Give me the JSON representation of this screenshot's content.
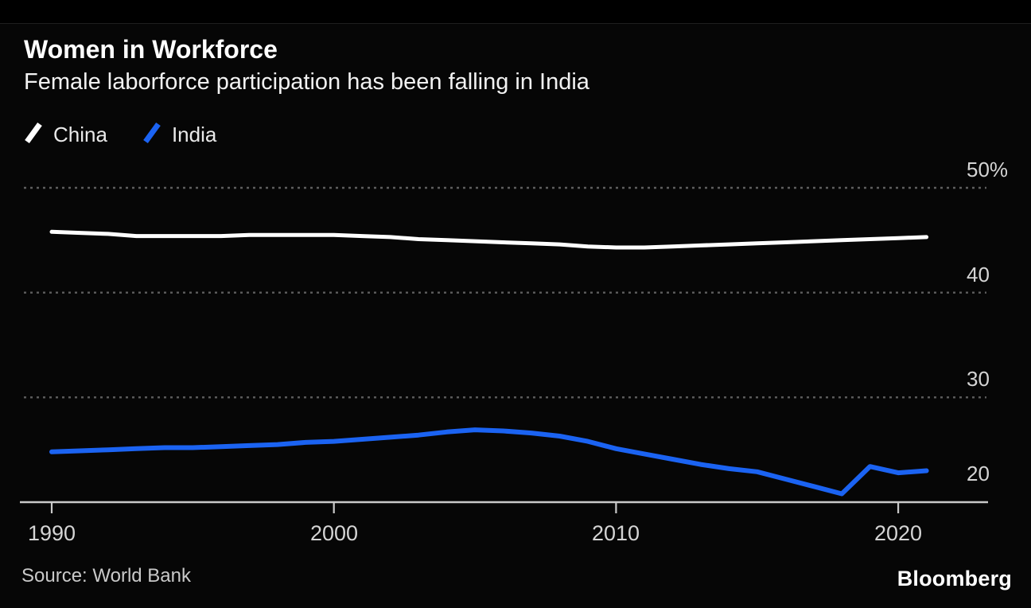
{
  "header": {
    "title": "Women in Workforce",
    "subtitle": "Female laborforce participation has been falling in India"
  },
  "legend": {
    "items": [
      {
        "label": "China",
        "color": "#ffffff"
      },
      {
        "label": "India",
        "color": "#1b63f2"
      }
    ]
  },
  "chart_data": {
    "type": "line",
    "title": "Women in Workforce",
    "subtitle": "Female laborforce participation has been falling in India",
    "xlabel": "",
    "ylabel": "",
    "grid": "horizontal-dashed",
    "legend_position": "top-left",
    "x_range": [
      1990,
      2021
    ],
    "ylim": [
      19.8,
      51
    ],
    "x_ticks": [
      {
        "value": 1990,
        "label": "1990"
      },
      {
        "value": 2000,
        "label": "2000"
      },
      {
        "value": 2010,
        "label": "2010"
      },
      {
        "value": 2020,
        "label": "2020"
      }
    ],
    "y_ticks": [
      {
        "value": 50,
        "label": "50%"
      },
      {
        "value": 40,
        "label": "40"
      },
      {
        "value": 30,
        "label": "30"
      },
      {
        "value": 20,
        "label": "20"
      }
    ],
    "x": [
      1990,
      1991,
      1992,
      1993,
      1994,
      1995,
      1996,
      1997,
      1998,
      1999,
      2000,
      2001,
      2002,
      2003,
      2004,
      2005,
      2006,
      2007,
      2008,
      2009,
      2010,
      2011,
      2012,
      2013,
      2014,
      2015,
      2016,
      2017,
      2018,
      2019,
      2020,
      2021
    ],
    "series": [
      {
        "name": "China",
        "color": "#ffffff",
        "values": [
          45.8,
          45.7,
          45.6,
          45.4,
          45.4,
          45.4,
          45.4,
          45.5,
          45.5,
          45.5,
          45.5,
          45.4,
          45.3,
          45.1,
          45.0,
          44.9,
          44.8,
          44.7,
          44.6,
          44.4,
          44.3,
          44.3,
          44.4,
          44.5,
          44.6,
          44.7,
          44.8,
          44.9,
          45.0,
          45.1,
          45.2,
          45.3
        ]
      },
      {
        "name": "India",
        "color": "#1b63f2",
        "values": [
          24.8,
          24.9,
          25.0,
          25.1,
          25.2,
          25.2,
          25.3,
          25.4,
          25.5,
          25.7,
          25.8,
          26.0,
          26.2,
          26.4,
          26.7,
          26.9,
          26.8,
          26.6,
          26.3,
          25.8,
          25.1,
          24.6,
          24.1,
          23.6,
          23.2,
          22.9,
          22.2,
          21.5,
          20.8,
          23.4,
          22.8,
          23.0
        ]
      }
    ],
    "colors": {
      "background": "#000000",
      "gridline": "#5e5e5e",
      "axis": "#c9c9c9",
      "tick_label": "#d4d4d4"
    }
  },
  "footer": {
    "source": "Source: World Bank",
    "brand": "Bloomberg"
  }
}
